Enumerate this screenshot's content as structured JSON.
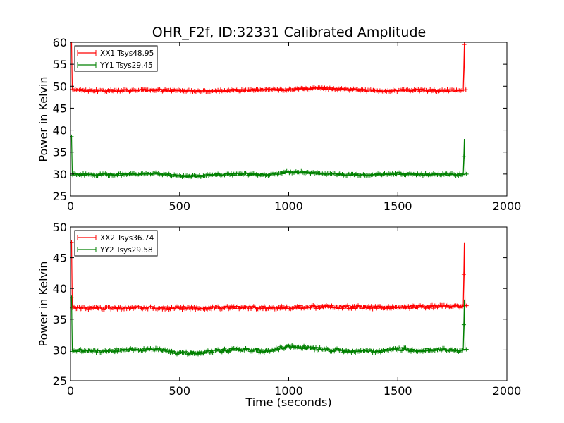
{
  "title": "OHR_F2f, ID:32331 Calibrated Amplitude",
  "chart_data": [
    {
      "type": "line",
      "xlabel": "",
      "ylabel": "Power in Kelvin",
      "xlim": [
        0,
        2000
      ],
      "ylim": [
        25,
        60
      ],
      "xticks": [
        0,
        500,
        1000,
        1500,
        2000
      ],
      "yticks": [
        25,
        30,
        35,
        40,
        45,
        50,
        55,
        60
      ],
      "grid": false,
      "legend_position": "top-left",
      "series": [
        {
          "name": "XX1 Tsys48.95",
          "color": "#ff0000",
          "marker": "+",
          "x": [
            0,
            5,
            8,
            10,
            100,
            200,
            300,
            400,
            500,
            600,
            700,
            800,
            900,
            1000,
            1100,
            1150,
            1200,
            1300,
            1400,
            1500,
            1600,
            1700,
            1790,
            1800,
            1805,
            1808,
            1812,
            1815
          ],
          "y": [
            60,
            60,
            49.2,
            49.3,
            49.0,
            49.0,
            49.1,
            49.1,
            49.0,
            48.9,
            49.0,
            49.1,
            49.2,
            49.2,
            49.4,
            49.5,
            49.3,
            49.2,
            49.0,
            49.0,
            49.1,
            49.0,
            49.0,
            49.1,
            59.5,
            49.2,
            49.2,
            49.2
          ]
        },
        {
          "name": "YY1 Tsys29.45",
          "color": "#008000",
          "marker": "+",
          "x": [
            0,
            5,
            8,
            10,
            100,
            200,
            300,
            400,
            500,
            600,
            700,
            800,
            900,
            1000,
            1100,
            1200,
            1300,
            1400,
            1500,
            1600,
            1700,
            1790,
            1800,
            1805,
            1808,
            1812,
            1815
          ],
          "y": [
            38.5,
            38.5,
            30.0,
            30.0,
            29.8,
            29.9,
            30.0,
            30.1,
            29.5,
            29.6,
            29.9,
            30.0,
            29.8,
            30.5,
            30.3,
            30.0,
            29.8,
            29.8,
            30.1,
            29.9,
            30.0,
            29.8,
            29.9,
            38.0,
            30.0,
            30.0,
            30.0
          ]
        }
      ]
    },
    {
      "type": "line",
      "xlabel": "Time (seconds)",
      "ylabel": "Power in Kelvin",
      "xlim": [
        0,
        2000
      ],
      "ylim": [
        25,
        50
      ],
      "xticks": [
        0,
        500,
        1000,
        1500,
        2000
      ],
      "yticks": [
        25,
        30,
        35,
        40,
        45,
        50
      ],
      "grid": false,
      "legend_position": "top-left",
      "series": [
        {
          "name": "XX2 Tsys36.74",
          "color": "#ff0000",
          "marker": "+",
          "x": [
            0,
            5,
            8,
            10,
            100,
            200,
            300,
            400,
            500,
            600,
            700,
            800,
            900,
            1000,
            1100,
            1200,
            1300,
            1400,
            1500,
            1600,
            1700,
            1790,
            1800,
            1805,
            1808,
            1812,
            1815
          ],
          "y": [
            47.5,
            47.5,
            37.0,
            36.9,
            36.8,
            36.8,
            36.9,
            36.8,
            36.8,
            36.8,
            36.9,
            36.9,
            36.9,
            36.9,
            37.0,
            37.0,
            37.0,
            36.9,
            36.9,
            37.0,
            37.1,
            37.1,
            37.1,
            47.5,
            37.2,
            37.2,
            37.2
          ]
        },
        {
          "name": "YY2 Tsys29.58",
          "color": "#008000",
          "marker": "+",
          "x": [
            0,
            5,
            8,
            10,
            100,
            200,
            300,
            400,
            500,
            600,
            700,
            800,
            900,
            1000,
            1100,
            1200,
            1300,
            1400,
            1500,
            1600,
            1700,
            1790,
            1800,
            1805,
            1808,
            1812,
            1815
          ],
          "y": [
            38.5,
            38.5,
            30.1,
            30.0,
            29.8,
            29.9,
            30.0,
            30.1,
            29.5,
            29.6,
            29.9,
            30.1,
            29.8,
            30.6,
            30.3,
            30.0,
            29.8,
            29.8,
            30.2,
            29.9,
            30.1,
            29.9,
            30.0,
            38.2,
            30.1,
            30.1,
            30.1
          ]
        }
      ]
    }
  ]
}
